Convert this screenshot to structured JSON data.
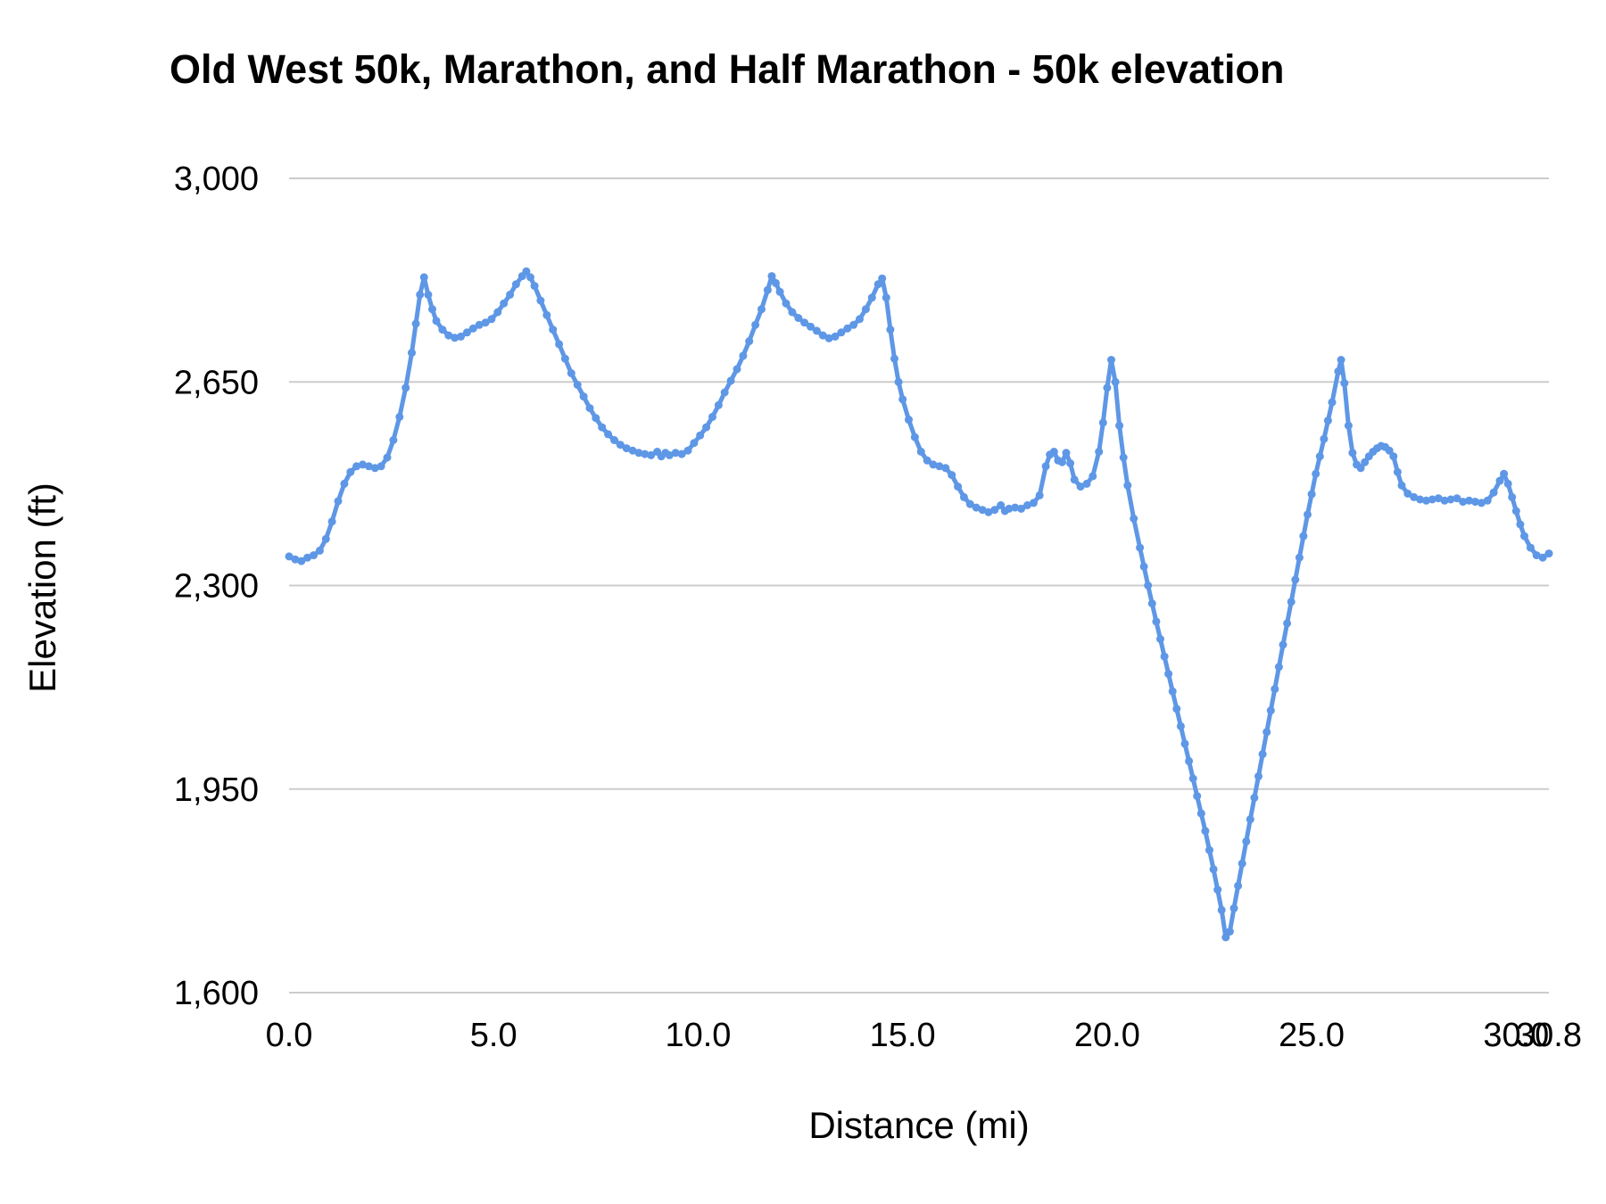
{
  "chart_data": {
    "type": "line",
    "title": "Old West 50k, Marathon, and Half Marathon - 50k elevation",
    "xlabel": "Distance (mi)",
    "ylabel": "Elevation (ft)",
    "xlim": [
      0.0,
      30.8
    ],
    "ylim": [
      1600,
      3000
    ],
    "x_ticks": [
      0.0,
      5.0,
      10.0,
      15.0,
      20.0,
      25.0,
      30.0,
      30.8
    ],
    "x_tick_labels": [
      "0.0",
      "5.0",
      "10.0",
      "15.0",
      "20.0",
      "25.0",
      "30.0",
      "30.8"
    ],
    "y_ticks": [
      1600,
      1950,
      2300,
      2650,
      3000
    ],
    "y_tick_labels": [
      "1,600",
      "1,950",
      "2,300",
      "2,650",
      "3,000"
    ],
    "grid": true,
    "legend_position": "none",
    "line_color": "#5e97e6",
    "grid_color": "#cccccc",
    "series": [
      {
        "name": "50k elevation",
        "points": [
          [
            0.0,
            2350
          ],
          [
            0.15,
            2345
          ],
          [
            0.3,
            2342
          ],
          [
            0.45,
            2348
          ],
          [
            0.6,
            2352
          ],
          [
            0.75,
            2360
          ],
          [
            0.9,
            2380
          ],
          [
            1.05,
            2410
          ],
          [
            1.2,
            2445
          ],
          [
            1.35,
            2475
          ],
          [
            1.5,
            2495
          ],
          [
            1.65,
            2505
          ],
          [
            1.8,
            2508
          ],
          [
            1.95,
            2505
          ],
          [
            2.1,
            2502
          ],
          [
            2.25,
            2505
          ],
          [
            2.4,
            2520
          ],
          [
            2.55,
            2550
          ],
          [
            2.7,
            2590
          ],
          [
            2.85,
            2640
          ],
          [
            3.0,
            2700
          ],
          [
            3.1,
            2750
          ],
          [
            3.2,
            2800
          ],
          [
            3.3,
            2830
          ],
          [
            3.4,
            2800
          ],
          [
            3.5,
            2775
          ],
          [
            3.6,
            2755
          ],
          [
            3.75,
            2740
          ],
          [
            3.9,
            2730
          ],
          [
            4.05,
            2726
          ],
          [
            4.2,
            2728
          ],
          [
            4.35,
            2735
          ],
          [
            4.5,
            2742
          ],
          [
            4.65,
            2748
          ],
          [
            4.8,
            2752
          ],
          [
            4.95,
            2758
          ],
          [
            5.1,
            2770
          ],
          [
            5.25,
            2785
          ],
          [
            5.4,
            2800
          ],
          [
            5.55,
            2818
          ],
          [
            5.7,
            2832
          ],
          [
            5.8,
            2840
          ],
          [
            5.9,
            2830
          ],
          [
            6.0,
            2815
          ],
          [
            6.15,
            2790
          ],
          [
            6.3,
            2765
          ],
          [
            6.45,
            2740
          ],
          [
            6.6,
            2715
          ],
          [
            6.75,
            2690
          ],
          [
            6.9,
            2665
          ],
          [
            7.05,
            2645
          ],
          [
            7.2,
            2625
          ],
          [
            7.35,
            2605
          ],
          [
            7.5,
            2588
          ],
          [
            7.65,
            2572
          ],
          [
            7.8,
            2560
          ],
          [
            7.95,
            2550
          ],
          [
            8.1,
            2542
          ],
          [
            8.25,
            2536
          ],
          [
            8.4,
            2532
          ],
          [
            8.55,
            2528
          ],
          [
            8.7,
            2526
          ],
          [
            8.85,
            2524
          ],
          [
            9.0,
            2530
          ],
          [
            9.1,
            2522
          ],
          [
            9.2,
            2528
          ],
          [
            9.3,
            2524
          ],
          [
            9.45,
            2528
          ],
          [
            9.6,
            2526
          ],
          [
            9.75,
            2532
          ],
          [
            9.9,
            2545
          ],
          [
            10.05,
            2558
          ],
          [
            10.2,
            2572
          ],
          [
            10.35,
            2590
          ],
          [
            10.5,
            2610
          ],
          [
            10.65,
            2632
          ],
          [
            10.8,
            2652
          ],
          [
            10.95,
            2672
          ],
          [
            11.1,
            2695
          ],
          [
            11.25,
            2720
          ],
          [
            11.4,
            2748
          ],
          [
            11.55,
            2775
          ],
          [
            11.7,
            2808
          ],
          [
            11.8,
            2832
          ],
          [
            11.9,
            2820
          ],
          [
            12.0,
            2805
          ],
          [
            12.15,
            2785
          ],
          [
            12.3,
            2770
          ],
          [
            12.45,
            2760
          ],
          [
            12.6,
            2752
          ],
          [
            12.75,
            2745
          ],
          [
            12.9,
            2738
          ],
          [
            13.05,
            2730
          ],
          [
            13.2,
            2725
          ],
          [
            13.35,
            2728
          ],
          [
            13.5,
            2735
          ],
          [
            13.65,
            2742
          ],
          [
            13.8,
            2748
          ],
          [
            13.95,
            2758
          ],
          [
            14.1,
            2775
          ],
          [
            14.25,
            2795
          ],
          [
            14.4,
            2818
          ],
          [
            14.5,
            2828
          ],
          [
            14.6,
            2795
          ],
          [
            14.7,
            2740
          ],
          [
            14.8,
            2690
          ],
          [
            14.9,
            2650
          ],
          [
            15.0,
            2620
          ],
          [
            15.15,
            2585
          ],
          [
            15.3,
            2555
          ],
          [
            15.45,
            2530
          ],
          [
            15.6,
            2515
          ],
          [
            15.75,
            2508
          ],
          [
            15.9,
            2505
          ],
          [
            16.05,
            2502
          ],
          [
            16.2,
            2490
          ],
          [
            16.35,
            2470
          ],
          [
            16.5,
            2452
          ],
          [
            16.65,
            2440
          ],
          [
            16.8,
            2434
          ],
          [
            16.95,
            2430
          ],
          [
            17.1,
            2426
          ],
          [
            17.25,
            2430
          ],
          [
            17.4,
            2438
          ],
          [
            17.5,
            2428
          ],
          [
            17.6,
            2432
          ],
          [
            17.75,
            2434
          ],
          [
            17.9,
            2432
          ],
          [
            18.05,
            2438
          ],
          [
            18.2,
            2442
          ],
          [
            18.35,
            2455
          ],
          [
            18.5,
            2505
          ],
          [
            18.6,
            2525
          ],
          [
            18.7,
            2530
          ],
          [
            18.8,
            2515
          ],
          [
            18.9,
            2512
          ],
          [
            19.0,
            2528
          ],
          [
            19.1,
            2510
          ],
          [
            19.2,
            2482
          ],
          [
            19.35,
            2470
          ],
          [
            19.5,
            2475
          ],
          [
            19.65,
            2488
          ],
          [
            19.8,
            2530
          ],
          [
            19.9,
            2580
          ],
          [
            20.0,
            2640
          ],
          [
            20.1,
            2688
          ],
          [
            20.2,
            2650
          ],
          [
            20.3,
            2575
          ],
          [
            20.4,
            2520
          ],
          [
            20.5,
            2472
          ],
          [
            20.65,
            2415
          ],
          [
            20.8,
            2365
          ],
          [
            21.0,
            2300
          ],
          [
            21.2,
            2238
          ],
          [
            21.4,
            2178
          ],
          [
            21.6,
            2118
          ],
          [
            21.8,
            2058
          ],
          [
            22.0,
            1998
          ],
          [
            22.2,
            1938
          ],
          [
            22.4,
            1878
          ],
          [
            22.6,
            1812
          ],
          [
            22.8,
            1742
          ],
          [
            22.9,
            1695
          ],
          [
            23.0,
            1705
          ],
          [
            23.1,
            1745
          ],
          [
            23.3,
            1822
          ],
          [
            23.5,
            1898
          ],
          [
            23.7,
            1972
          ],
          [
            23.9,
            2048
          ],
          [
            24.1,
            2122
          ],
          [
            24.3,
            2198
          ],
          [
            24.5,
            2272
          ],
          [
            24.7,
            2348
          ],
          [
            24.9,
            2422
          ],
          [
            25.1,
            2492
          ],
          [
            25.3,
            2552
          ],
          [
            25.5,
            2615
          ],
          [
            25.65,
            2668
          ],
          [
            25.72,
            2688
          ],
          [
            25.8,
            2648
          ],
          [
            25.9,
            2575
          ],
          [
            26.0,
            2528
          ],
          [
            26.1,
            2508
          ],
          [
            26.2,
            2502
          ],
          [
            26.3,
            2512
          ],
          [
            26.4,
            2522
          ],
          [
            26.5,
            2530
          ],
          [
            26.6,
            2536
          ],
          [
            26.7,
            2540
          ],
          [
            26.8,
            2538
          ],
          [
            26.9,
            2532
          ],
          [
            27.0,
            2522
          ],
          [
            27.1,
            2495
          ],
          [
            27.2,
            2472
          ],
          [
            27.35,
            2458
          ],
          [
            27.5,
            2452
          ],
          [
            27.65,
            2448
          ],
          [
            27.8,
            2446
          ],
          [
            27.95,
            2448
          ],
          [
            28.1,
            2450
          ],
          [
            28.25,
            2446
          ],
          [
            28.4,
            2448
          ],
          [
            28.55,
            2450
          ],
          [
            28.7,
            2444
          ],
          [
            28.85,
            2446
          ],
          [
            29.0,
            2444
          ],
          [
            29.15,
            2442
          ],
          [
            29.3,
            2446
          ],
          [
            29.45,
            2460
          ],
          [
            29.6,
            2480
          ],
          [
            29.7,
            2492
          ],
          [
            29.8,
            2475
          ],
          [
            29.9,
            2452
          ],
          [
            30.0,
            2428
          ],
          [
            30.1,
            2405
          ],
          [
            30.2,
            2385
          ],
          [
            30.35,
            2365
          ],
          [
            30.5,
            2352
          ],
          [
            30.65,
            2348
          ],
          [
            30.8,
            2355
          ]
        ]
      }
    ]
  }
}
